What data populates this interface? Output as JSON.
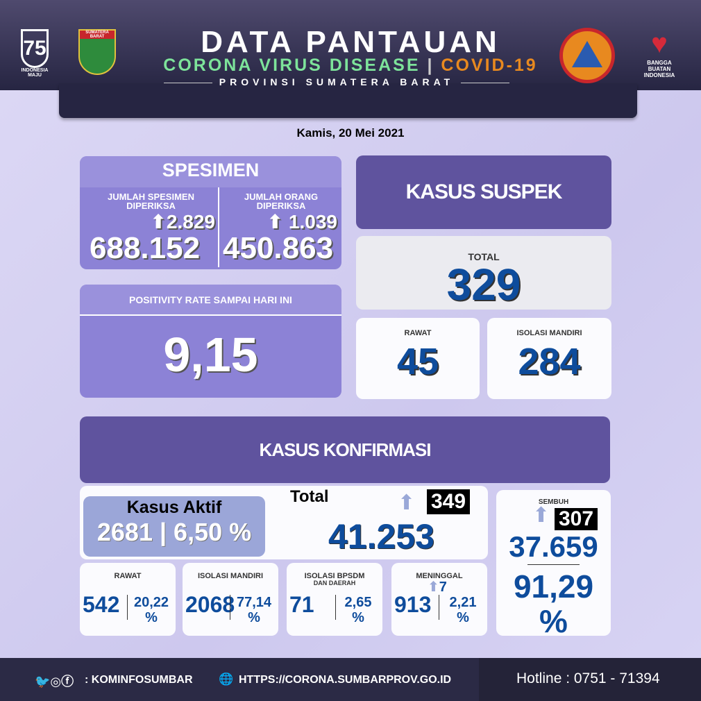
{
  "header": {
    "title": "DATA PANTAUAN",
    "subtitle_green": "CORONA VIRUS DISEASE",
    "subtitle_orange": "COVID-19",
    "province": "PROVINSI SUMATERA BARAT",
    "logos": {
      "left1": "INDONESIA MAJU",
      "left2": "SUMATERA BARAT",
      "right1": "BPBD SUMATERA BARAT",
      "right2": "BANGGA BUATAN INDONESIA"
    }
  },
  "date": "Kamis, 20 Mei 2021",
  "spesimen": {
    "title": "SPESIMEN",
    "col1": {
      "label": "JUMLAH SPESIMEN DIPERIKSA",
      "increase": "2.829",
      "value": "688.152"
    },
    "col2": {
      "label": "JUMLAH ORANG DIPERIKSA",
      "increase": "1.039",
      "value": "450.863"
    }
  },
  "positivity": {
    "label": "POSITIVITY RATE SAMPAI HARI INI",
    "value": "9,15"
  },
  "suspek": {
    "title": "KASUS SUSPEK",
    "total_label": "TOTAL",
    "total": "329",
    "rawat_label": "RAWAT",
    "rawat": "45",
    "isolasi_label": "ISOLASI MANDIRI",
    "isolasi": "284"
  },
  "konfirmasi": {
    "title": "KASUS KONFIRMASI",
    "aktif_label": "Kasus Aktif",
    "aktif": "2681",
    "aktif_pct": "6,50 %",
    "total_label": "Total",
    "total_increase": "349",
    "total": "41.253",
    "sembuh": {
      "label": "SEMBUH",
      "increase": "307",
      "value": "37.659",
      "pct": "91,29",
      "pct_sign": "%"
    },
    "boxes": [
      {
        "label": "RAWAT",
        "sub": "",
        "value": "542",
        "pct": "20,22",
        "sign": "%"
      },
      {
        "label": "ISOLASI MANDIRI",
        "sub": "",
        "value": "2068",
        "pct": "77,14",
        "sign": "%"
      },
      {
        "label": "ISOLASI BPSDM",
        "sub": "DAN DAERAH",
        "value": "71",
        "pct": "2,65",
        "sign": "%"
      },
      {
        "label": "MENINGGAL",
        "sub": "",
        "increase": "7",
        "value": "913",
        "pct": "2,21",
        "sign": "%"
      }
    ]
  },
  "footer": {
    "handle": ": KOMINFOSUMBAR",
    "url": "HTTPS://CORONA.SUMBARPROV.GO.ID",
    "hotline": "Hotline : 0751 - 71394"
  },
  "colors": {
    "header": "#262542",
    "panel": "#8c82d6",
    "dark_panel": "#5f539e",
    "number_blue": "#0e4c9c",
    "green": "#7de39a",
    "orange": "#e8891f"
  }
}
